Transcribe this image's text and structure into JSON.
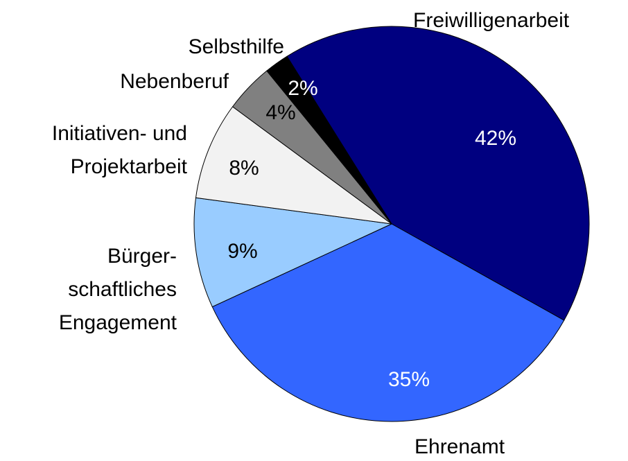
{
  "chart_data": {
    "type": "pie",
    "categories": [
      "Freiwilligenarbeit",
      "Ehrenamt",
      "Bürger-\nschaftliches\nEngagement",
      "Initiativen- und\nProjektarbeit",
      "Nebenberuf",
      "Selbsthilfe"
    ],
    "values": [
      42,
      35,
      9,
      8,
      4,
      2
    ],
    "value_labels": [
      "42%",
      "35%",
      "9%",
      "8%",
      "4%",
      "2%"
    ],
    "colors": [
      "#000080",
      "#3366ff",
      "#99ccff",
      "#f2f2f2",
      "#808080",
      "#000000"
    ]
  }
}
